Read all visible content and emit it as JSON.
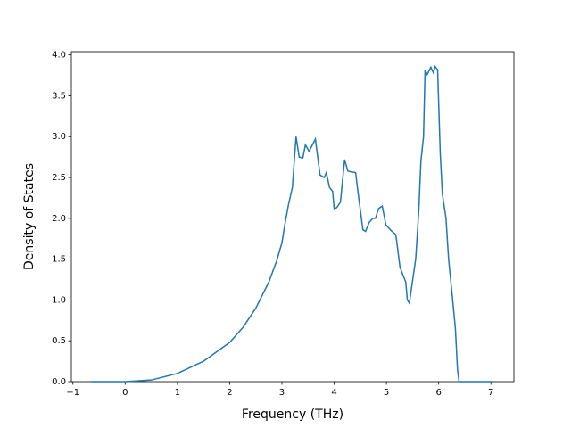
{
  "chart_data": {
    "type": "line",
    "xlabel": "Frequency (THz)",
    "ylabel": "Density of States",
    "x": [
      -0.65,
      0,
      0.5,
      1,
      1.5,
      2,
      2.25,
      2.5,
      2.75,
      2.9,
      3.0,
      3.05,
      3.12,
      3.2,
      3.27,
      3.33,
      3.4,
      3.45,
      3.52,
      3.64,
      3.73,
      3.81,
      3.85,
      3.91,
      3.97,
      4.0,
      4.05,
      4.12,
      4.2,
      4.26,
      4.31,
      4.41,
      4.46,
      4.55,
      4.6,
      4.67,
      4.74,
      4.79,
      4.85,
      4.92,
      4.99,
      5.09,
      5.18,
      5.23,
      5.26,
      5.32,
      5.37,
      5.4,
      5.44,
      5.47,
      5.56,
      5.62,
      5.66,
      5.71,
      5.74,
      5.78,
      5.85,
      5.9,
      5.93,
      5.98,
      6.03,
      6.07,
      6.14,
      6.19,
      6.26,
      6.32,
      6.36,
      6.39,
      7.0
    ],
    "series": [
      {
        "color": "#1f77b4",
        "values": [
          0,
          0,
          0.02,
          0.1,
          0.25,
          0.48,
          0.66,
          0.9,
          1.22,
          1.48,
          1.7,
          1.9,
          2.15,
          2.38,
          3.0,
          2.75,
          2.74,
          2.9,
          2.82,
          2.97,
          2.53,
          2.5,
          2.56,
          2.38,
          2.33,
          2.12,
          2.13,
          2.2,
          2.72,
          2.58,
          2.57,
          2.56,
          2.3,
          1.86,
          1.84,
          1.95,
          2.0,
          2.0,
          2.12,
          2.15,
          1.92,
          1.85,
          1.8,
          1.55,
          1.4,
          1.3,
          1.22,
          1.0,
          0.96,
          1.1,
          1.5,
          2.1,
          2.7,
          3.0,
          3.82,
          3.76,
          3.85,
          3.78,
          3.86,
          3.82,
          2.8,
          2.3,
          2.0,
          1.5,
          1.05,
          0.65,
          0.15,
          0,
          0
        ]
      }
    ],
    "xlim": [
      -1.03,
      7.44
    ],
    "ylim": [
      0,
      4.04
    ],
    "xticks": [
      {
        "value": -1,
        "label": "−1"
      },
      0,
      1,
      2,
      3,
      4,
      5,
      6,
      7
    ],
    "yticks": [
      {
        "value": 0,
        "label": "0.0"
      },
      0.5,
      {
        "value": 1,
        "label": "1.0"
      },
      1.5,
      {
        "value": 2,
        "label": "2.0"
      },
      2.5,
      {
        "value": 3,
        "label": "3.0"
      },
      3.5,
      {
        "value": 4,
        "label": "4.0"
      }
    ]
  }
}
